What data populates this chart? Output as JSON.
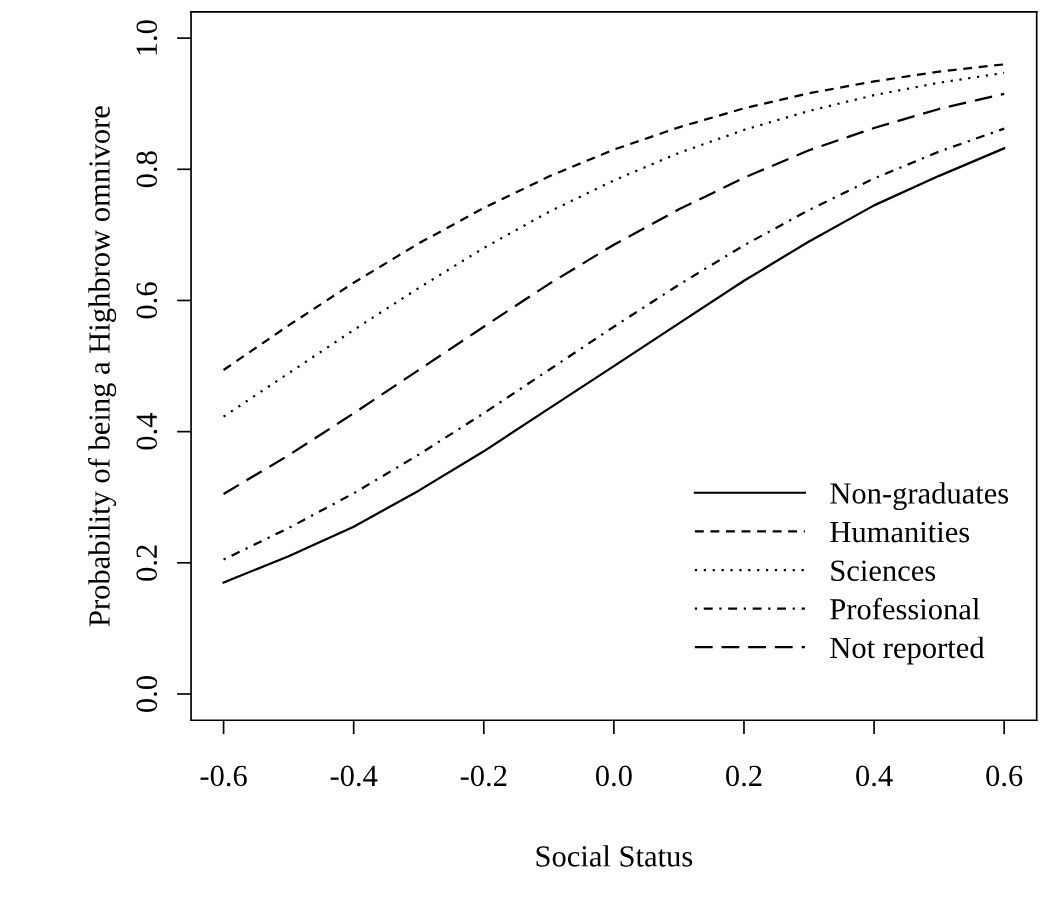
{
  "chart_data": {
    "type": "line",
    "xlabel": "Social Status",
    "ylabel": "Probability of being a Highbrow omnivore",
    "x": [
      -0.6,
      -0.5,
      -0.4,
      -0.3,
      -0.2,
      -0.1,
      0,
      0.1,
      0.2,
      0.3,
      0.4,
      0.5,
      0.6
    ],
    "series": [
      {
        "name": "Non-graduates",
        "color": "#000000",
        "line_style": "solid",
        "values": [
          0.17,
          0.21,
          0.255,
          0.31,
          0.37,
          0.435,
          0.5,
          0.565,
          0.63,
          0.69,
          0.745,
          0.79,
          0.832
        ]
      },
      {
        "name": "Humanities",
        "color": "#000000",
        "line_style": "dashed",
        "values": [
          0.494,
          0.562,
          0.627,
          0.687,
          0.741,
          0.789,
          0.83,
          0.864,
          0.893,
          0.916,
          0.934,
          0.949,
          0.96
        ]
      },
      {
        "name": "Sciences",
        "color": "#000000",
        "line_style": "dotted",
        "values": [
          0.423,
          0.489,
          0.555,
          0.619,
          0.68,
          0.735,
          0.783,
          0.825,
          0.86,
          0.889,
          0.913,
          0.932,
          0.947
        ]
      },
      {
        "name": "Professional",
        "color": "#000000",
        "line_style": "dashdot",
        "values": [
          0.205,
          0.253,
          0.306,
          0.365,
          0.428,
          0.494,
          0.56,
          0.624,
          0.684,
          0.738,
          0.786,
          0.827,
          0.862
        ]
      },
      {
        "name": "Not reported",
        "color": "#000000",
        "line_style": "longdash",
        "values": [
          0.305,
          0.364,
          0.428,
          0.494,
          0.56,
          0.625,
          0.685,
          0.739,
          0.787,
          0.829,
          0.863,
          0.892,
          0.915
        ]
      }
    ],
    "xlim": [
      -0.65,
      0.65
    ],
    "ylim": [
      -0.04,
      1.04
    ],
    "xticks": [
      {
        "value": -0.6,
        "label": "-0.6"
      },
      {
        "value": -0.4,
        "label": "-0.4"
      },
      {
        "value": -0.2,
        "label": "-0.2"
      },
      {
        "value": 0,
        "label": "0.0"
      },
      {
        "value": 0.2,
        "label": "0.2"
      },
      {
        "value": 0.4,
        "label": "0.4"
      },
      {
        "value": 0.6,
        "label": "0.6"
      }
    ],
    "yticks": [
      {
        "value": 0,
        "label": "0.0"
      },
      {
        "value": 0.2,
        "label": "0.2"
      },
      {
        "value": 0.4,
        "label": "0.4"
      },
      {
        "value": 0.6,
        "label": "0.6"
      },
      {
        "value": 0.8,
        "label": "0.8"
      },
      {
        "value": 1,
        "label": "1.0"
      }
    ],
    "grid": false,
    "legend": "bottom right",
    "marker": "none"
  }
}
